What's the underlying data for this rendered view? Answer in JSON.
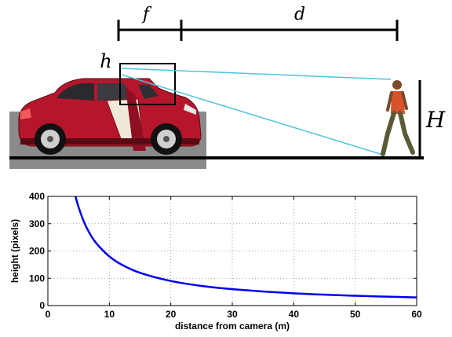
{
  "diagram": {
    "labels": {
      "focal_length": "f",
      "distance": "d",
      "image_height": "h",
      "object_height": "H"
    },
    "colors": {
      "car_body": "#b0142a",
      "ray_color": "#4fc3dc",
      "ground": "#000000",
      "backdrop": "#888888"
    },
    "icons": {
      "vehicle": "car-icon",
      "person": "walking-person-icon",
      "image_plane": "image-plane-box"
    }
  },
  "chart_data": {
    "type": "line",
    "title": "",
    "xlabel": "distance from camera (m)",
    "ylabel": "height (pixels)",
    "xlim": [
      0,
      60
    ],
    "ylim": [
      0,
      400
    ],
    "xticks": [
      0,
      10,
      20,
      30,
      40,
      50,
      60
    ],
    "yticks": [
      0,
      100,
      200,
      300,
      400
    ],
    "grid": true,
    "series": [
      {
        "color": "#0000ee",
        "x": [
          4.5,
          5,
          6,
          7,
          8,
          10,
          12,
          15,
          20,
          25,
          30,
          40,
          50,
          60
        ],
        "y": [
          400,
          360,
          300,
          257,
          225,
          180,
          150,
          120,
          90,
          72,
          60,
          45,
          36,
          30
        ]
      }
    ]
  }
}
